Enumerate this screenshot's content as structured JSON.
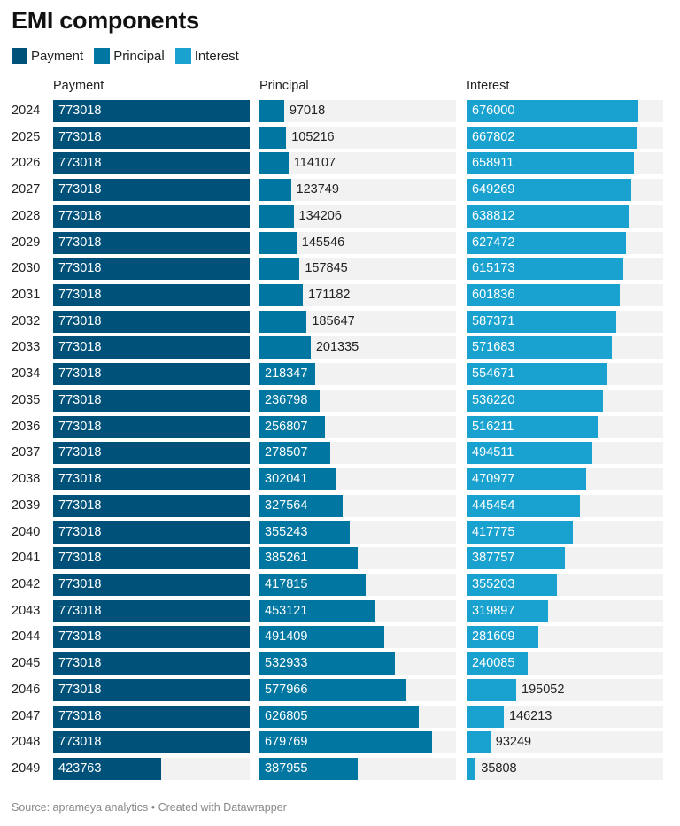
{
  "title": "EMI components",
  "footer": "Source: aprameya analytics • Created with Datawrapper",
  "colors": {
    "payment": "#00517a",
    "principal": "#0076a1",
    "interest": "#19a2cf",
    "track": "#f2f2f2"
  },
  "chart_data": {
    "type": "bar",
    "title": "EMI components",
    "legend": [
      "Payment",
      "Principal",
      "Interest"
    ],
    "legend_position": "top-left",
    "columns": [
      "Payment",
      "Principal",
      "Interest"
    ],
    "categories": [
      "2024",
      "2025",
      "2026",
      "2027",
      "2028",
      "2029",
      "2030",
      "2031",
      "2032",
      "2033",
      "2034",
      "2035",
      "2036",
      "2037",
      "2038",
      "2039",
      "2040",
      "2041",
      "2042",
      "2043",
      "2044",
      "2045",
      "2046",
      "2047",
      "2048",
      "2049"
    ],
    "series": [
      {
        "name": "Payment",
        "values": [
          773018,
          773018,
          773018,
          773018,
          773018,
          773018,
          773018,
          773018,
          773018,
          773018,
          773018,
          773018,
          773018,
          773018,
          773018,
          773018,
          773018,
          773018,
          773018,
          773018,
          773018,
          773018,
          773018,
          773018,
          773018,
          423763
        ]
      },
      {
        "name": "Principal",
        "values": [
          97018,
          105216,
          114107,
          123749,
          134206,
          145546,
          157845,
          171182,
          185647,
          201335,
          218347,
          236798,
          256807,
          278507,
          302041,
          327564,
          355243,
          385261,
          417815,
          453121,
          491409,
          532933,
          577966,
          626805,
          679769,
          387955
        ]
      },
      {
        "name": "Interest",
        "values": [
          676000,
          667802,
          658911,
          649269,
          638812,
          627472,
          615173,
          601836,
          587371,
          571683,
          554671,
          536220,
          516211,
          494511,
          470977,
          445454,
          417775,
          387757,
          355203,
          319897,
          281609,
          240085,
          195052,
          146213,
          93249,
          35808
        ]
      }
    ],
    "xlim": [
      0,
      773018
    ]
  }
}
